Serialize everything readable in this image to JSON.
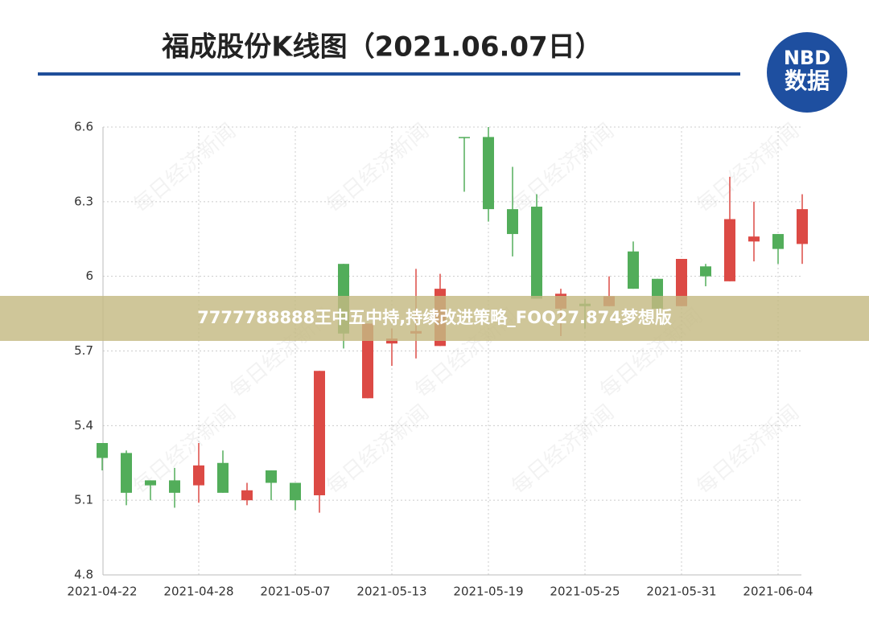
{
  "chart_data": {
    "type": "candlestick",
    "title": "福成股份K线图（2021.06.07日）",
    "logo": [
      "NBD",
      "数据"
    ],
    "watermark": "每日经济新闻",
    "banner": "7777788888王中五中持,持续改进策略_FOQ27.874梦想版",
    "categories": [
      "2021-04-22",
      null,
      null,
      null,
      "2021-04-28",
      null,
      null,
      null,
      "2021-05-07",
      null,
      null,
      null,
      "2021-05-13",
      null,
      null,
      null,
      "2021-05-19",
      null,
      null,
      null,
      "2021-05-25",
      null,
      null,
      null,
      "2021-05-31",
      null,
      null,
      null,
      "2021-06-04",
      null
    ],
    "open": [
      5.33,
      5.29,
      5.18,
      5.18,
      5.16,
      5.25,
      5.1,
      5.22,
      5.17,
      5.12,
      6.05,
      5.51,
      5.73,
      5.77,
      5.72,
      6.56,
      6.56,
      6.27,
      6.28,
      5.87,
      5.89,
      5.88,
      6.1,
      5.99,
      5.88,
      6.04,
      5.98,
      6.14,
      6.17,
      6.13
    ],
    "high": [
      5.33,
      5.3,
      5.18,
      5.23,
      5.33,
      5.3,
      5.17,
      5.22,
      5.17,
      5.62,
      6.05,
      5.81,
      5.79,
      6.03,
      6.01,
      6.56,
      6.6,
      6.44,
      6.33,
      5.95,
      5.91,
      6.0,
      6.14,
      5.99,
      6.07,
      6.05,
      6.4,
      6.3,
      6.17,
      6.33
    ],
    "low": [
      5.22,
      5.08,
      5.1,
      5.07,
      5.09,
      5.13,
      5.08,
      5.1,
      5.06,
      5.05,
      5.71,
      5.51,
      5.64,
      5.67,
      5.72,
      6.34,
      6.22,
      6.08,
      5.91,
      5.76,
      5.79,
      5.88,
      5.95,
      5.87,
      5.88,
      5.96,
      5.98,
      6.06,
      6.05,
      6.05
    ],
    "close": [
      5.27,
      5.13,
      5.16,
      5.13,
      5.24,
      5.13,
      5.14,
      5.17,
      5.1,
      5.62,
      5.77,
      5.81,
      5.75,
      5.78,
      5.95,
      6.56,
      6.27,
      6.17,
      5.91,
      5.93,
      5.88,
      5.92,
      5.95,
      5.87,
      6.07,
      6.0,
      6.23,
      6.16,
      6.11,
      6.27
    ],
    "up_color": "#dc4a45",
    "down_color": "#52ad5a",
    "ylim": [
      4.8,
      6.6
    ],
    "yticks": [
      4.8,
      5.1,
      5.4,
      5.7,
      6,
      6.3,
      6.6
    ],
    "grid": true
  }
}
